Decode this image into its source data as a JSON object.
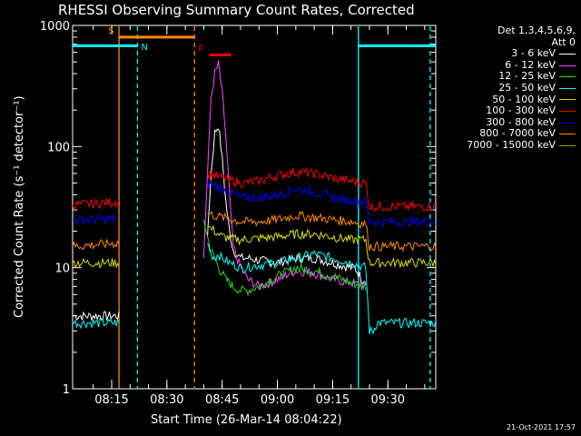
{
  "chart_data": {
    "type": "line",
    "title": "RHESSI Observing Summary Count Rates, Corrected",
    "xlabel": "Start Time (26-Mar-14 08:04:22)",
    "ylabel": "Corrected Count Rate (s⁻¹ detector⁻¹)",
    "y_scale": "log",
    "ylim": [
      1,
      1000
    ],
    "y_ticks": [
      "1",
      "10",
      "100",
      "1000"
    ],
    "x_ticks": [
      "08:15",
      "08:30",
      "08:45",
      "09:00",
      "09:15",
      "09:30"
    ],
    "x_tick_minutes": [
      15,
      30,
      45,
      60,
      75,
      90
    ],
    "xlim_minutes": [
      4.4,
      103
    ],
    "grid": false,
    "legend_position": "right",
    "legend_header": [
      "Det 1,3,4,5,6,9,",
      "Att 0"
    ],
    "series": [
      {
        "name": "3 - 6 keV",
        "color": "#ffffff",
        "x": [
          4.4,
          17,
          17.5,
          40,
          41,
          42,
          43,
          44,
          45,
          46,
          47,
          48,
          50,
          52,
          55,
          60,
          65,
          70,
          75,
          80,
          81,
          82,
          83,
          84,
          85
        ],
        "y": [
          4,
          4,
          null,
          null,
          18,
          60,
          130,
          150,
          80,
          35,
          20,
          14,
          12,
          12,
          11.5,
          11,
          12,
          12,
          11,
          10,
          10,
          9,
          8,
          8,
          null
        ]
      },
      {
        "name": "6 - 12 keV",
        "color": "#ff44ff",
        "x": [
          40,
          41,
          42,
          43,
          44,
          45,
          46,
          47,
          48,
          50,
          52,
          55,
          60,
          65,
          70,
          75,
          80,
          84,
          85
        ],
        "y": [
          12,
          60,
          250,
          400,
          480,
          280,
          120,
          40,
          15,
          10,
          8,
          7,
          8,
          9.5,
          9,
          8,
          7.5,
          7,
          null
        ]
      },
      {
        "name": "12 - 25 keV",
        "color": "#22dd22",
        "x": [
          40,
          41,
          42,
          43,
          44,
          45,
          46,
          47,
          48,
          50,
          52,
          55,
          60,
          65,
          70,
          75,
          80,
          84,
          85
        ],
        "y": [
          25,
          18,
          14,
          12,
          10,
          9,
          8,
          7.5,
          7,
          6.5,
          6.5,
          7,
          8.5,
          10,
          9.5,
          8.5,
          7.5,
          7,
          null
        ]
      },
      {
        "name": "25 - 50 keV",
        "color": "#00ffff",
        "x": [
          4.4,
          17,
          17.5,
          40,
          41,
          42,
          43,
          44,
          45,
          47,
          50,
          55,
          60,
          65,
          70,
          75,
          80,
          84,
          85,
          86,
          87,
          88,
          103
        ],
        "y": [
          3.5,
          3.5,
          null,
          null,
          16,
          13,
          12,
          13,
          12,
          11,
          10,
          10.5,
          11,
          12,
          13,
          12,
          11,
          10,
          3,
          3,
          3.5,
          3.5,
          3.5
        ]
      },
      {
        "name": "50 - 100 keV",
        "color": "#dddd00",
        "x": [
          4.4,
          17,
          17.5,
          40,
          41,
          43,
          45,
          50,
          55,
          60,
          65,
          70,
          75,
          80,
          84,
          85,
          86,
          103
        ],
        "y": [
          11,
          11,
          null,
          null,
          22,
          20,
          18,
          17,
          17.5,
          18,
          19,
          19,
          18,
          17,
          17,
          11,
          11,
          11
        ]
      },
      {
        "name": "100 - 300 keV",
        "color": "#ff0000",
        "x": [
          4.4,
          17,
          17.5,
          40,
          41,
          43,
          45,
          50,
          55,
          60,
          65,
          70,
          75,
          80,
          84,
          85,
          86,
          103
        ],
        "y": [
          33,
          35,
          null,
          null,
          60,
          58,
          55,
          50,
          52,
          58,
          62,
          60,
          55,
          52,
          50,
          32,
          32,
          32
        ]
      },
      {
        "name": "300 - 800 keV",
        "color": "#0000ff",
        "x": [
          4.4,
          17,
          17.5,
          40,
          41,
          43,
          45,
          50,
          55,
          60,
          65,
          70,
          75,
          80,
          84,
          85,
          86,
          103
        ],
        "y": [
          25,
          25,
          null,
          null,
          50,
          48,
          45,
          38,
          38,
          40,
          45,
          42,
          38,
          36,
          35,
          24,
          24,
          24
        ]
      },
      {
        "name": "800 - 7000 keV",
        "color": "#ff8800",
        "x": [
          4.4,
          17,
          17.5,
          40,
          41,
          43,
          45,
          50,
          55,
          60,
          65,
          70,
          75,
          80,
          84,
          85,
          86,
          103
        ],
        "y": [
          15,
          16,
          null,
          null,
          28,
          27,
          26,
          24,
          24,
          25,
          27,
          26,
          25,
          24,
          23,
          15,
          15,
          15
        ]
      },
      {
        "name": "7000 - 15000 keV",
        "color": "#88aa00",
        "x": [],
        "y": []
      }
    ],
    "flags": [
      {
        "label": "S",
        "color": "#ff8800",
        "x_start": 17.0,
        "x_end": 37.5,
        "y": 800
      },
      {
        "label": "N",
        "color": "#00ffff",
        "x_start": 4.4,
        "x_end": 22.0,
        "y": 680
      },
      {
        "label": "",
        "color": "#00ffff",
        "x_start": 82.0,
        "x_end": 103.0,
        "y": 680
      },
      {
        "label": "F",
        "color": "#ff0000",
        "x_start": 41.5,
        "x_end": 47.5,
        "y": 570
      }
    ],
    "markers": [
      {
        "x": 17.0,
        "color": "#ff8800",
        "dashed": false
      },
      {
        "x": 22.0,
        "color": "#00ffff",
        "dashed": true
      },
      {
        "x": 37.5,
        "color": "#ff8800",
        "dashed": true
      },
      {
        "x": 82.0,
        "color": "#00ffff",
        "dashed": false
      },
      {
        "x": 101.5,
        "color": "#00ffff",
        "dashed": true
      }
    ]
  },
  "timestamp": "21-Oct-2021 17:57"
}
